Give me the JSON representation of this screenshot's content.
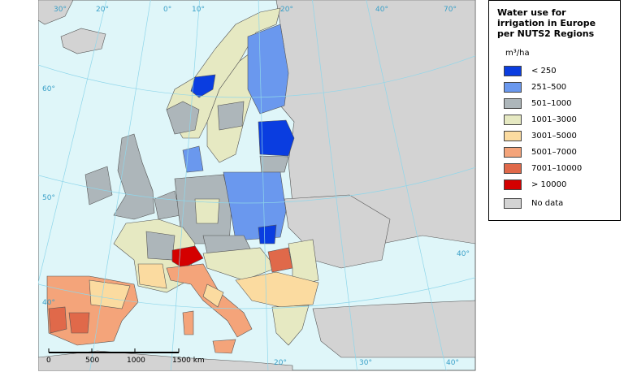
{
  "title": "Water use for irrigation in Europe per NUTS2 Regions",
  "unit": "m³/ha",
  "legend": [
    {
      "label": "< 250",
      "color": "#0a3de0"
    },
    {
      "label": "251–500",
      "color": "#6a98ee"
    },
    {
      "label": "501–1000",
      "color": "#adb6ba"
    },
    {
      "label": "1001–3000",
      "color": "#e6e9c2"
    },
    {
      "label": "3001–5000",
      "color": "#fbdba0"
    },
    {
      "label": "5001–7000",
      "color": "#f4a47a"
    },
    {
      "label": "7001–10000",
      "color": "#e0694a"
    },
    {
      "label": "> 10000",
      "color": "#d40000"
    },
    {
      "label": "No data",
      "color": "#d3d3d3"
    }
  ],
  "graticule_labels": {
    "top": [
      "30°",
      "20°",
      "0°",
      "10°",
      "20°",
      "40°",
      "70°"
    ],
    "left": [
      "60°",
      "50°",
      "40°"
    ],
    "bottom": [
      "20°",
      "30°",
      "40°"
    ],
    "right": [
      "40°"
    ]
  },
  "scale_bar": [
    "0",
    "500",
    "1000",
    "1500 km"
  ]
}
